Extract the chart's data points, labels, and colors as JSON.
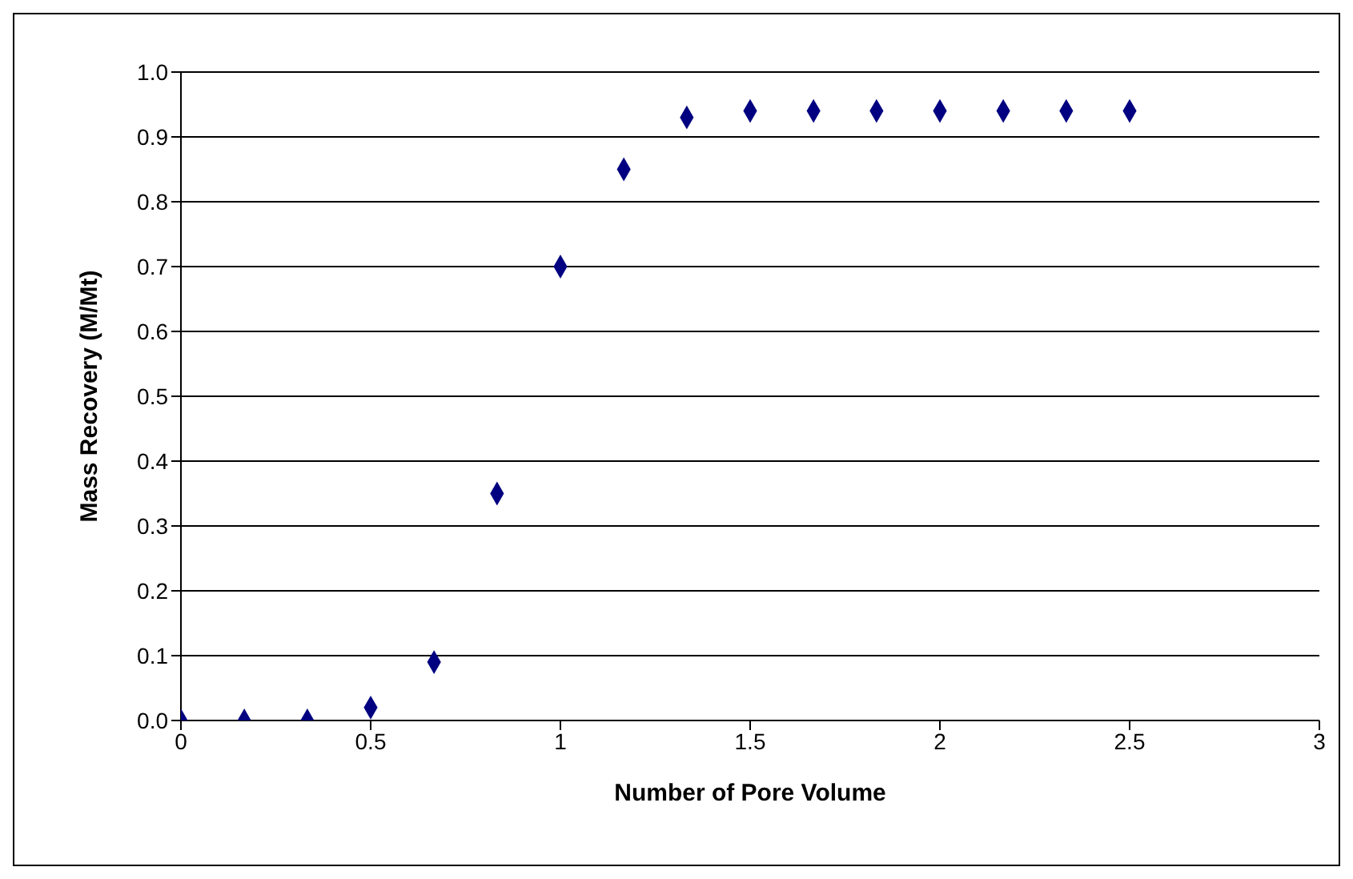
{
  "chart_data": {
    "type": "scatter",
    "xlabel": "Number of Pore Volume",
    "ylabel": "Mass Recovery (M/Mt)",
    "x": [
      0,
      0.167,
      0.333,
      0.5,
      0.667,
      0.833,
      1,
      1.167,
      1.333,
      1.5,
      1.667,
      1.833,
      2,
      2.167,
      2.333,
      2.5
    ],
    "series": [
      {
        "color": "#000080",
        "values": [
          0,
          0,
          0,
          0.02,
          0.09,
          0.35,
          0.7,
          0.85,
          0.93,
          0.94,
          0.94,
          0.94,
          0.94,
          0.94,
          0.94,
          0.94
        ]
      }
    ],
    "xlim": [
      0,
      3
    ],
    "xticks": [
      0,
      0.5,
      1,
      1.5,
      2,
      2.5,
      3
    ],
    "ylim": [
      0,
      1
    ],
    "yticks": [
      {
        "value": 0,
        "label": "0.0"
      },
      {
        "value": 0.1,
        "label": "0.1"
      },
      {
        "value": 0.2,
        "label": "0.2"
      },
      {
        "value": 0.3,
        "label": "0.3"
      },
      {
        "value": 0.4,
        "label": "0.4"
      },
      {
        "value": 0.5,
        "label": "0.5"
      },
      {
        "value": 0.6,
        "label": "0.6"
      },
      {
        "value": 0.7,
        "label": "0.7"
      },
      {
        "value": 0.8,
        "label": "0.8"
      },
      {
        "value": 0.9,
        "label": "0.9"
      },
      {
        "value": 1,
        "label": "1.0"
      }
    ],
    "grid": "y",
    "marker": "diamond",
    "legend": false
  }
}
